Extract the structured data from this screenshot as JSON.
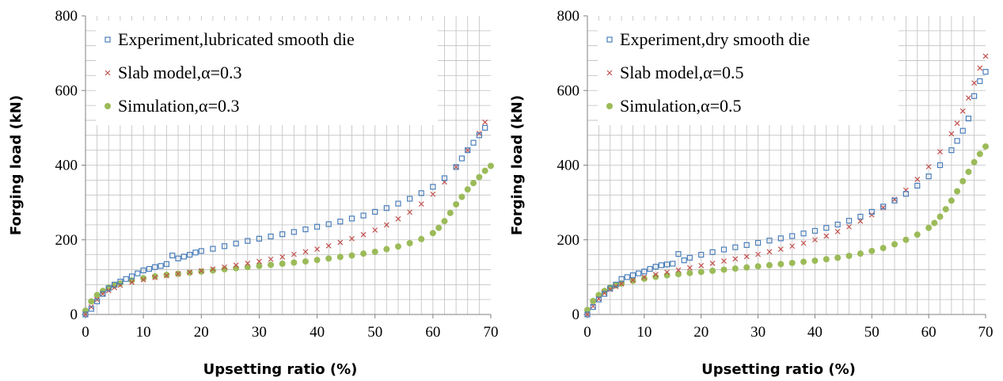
{
  "colors": {
    "experiment": "#4a7ebb",
    "slab": "#c0504d",
    "simulation": "#9bbb59",
    "grid": "#bfbfbf",
    "axis": "#808080"
  },
  "chart_data": [
    {
      "type": "scatter",
      "xlabel": "Upsetting ratio (%)",
      "ylabel": "Forging load (kN)",
      "xlim": [
        0,
        70
      ],
      "ylim": [
        0,
        800
      ],
      "xticks": [
        "0",
        "10",
        "20",
        "30",
        "40",
        "50",
        "60",
        "70"
      ],
      "yticks": [
        "0",
        "200",
        "400",
        "600",
        "800"
      ],
      "grid": true,
      "legend_position": "top-left",
      "series": [
        {
          "name": "Experiment,lubricated smooth die",
          "marker": "square",
          "points": [
            [
              0,
              0
            ],
            [
              1,
              15
            ],
            [
              2,
              35
            ],
            [
              3,
              55
            ],
            [
              4,
              70
            ],
            [
              5,
              80
            ],
            [
              6,
              88
            ],
            [
              7,
              95
            ],
            [
              8,
              102
            ],
            [
              9,
              110
            ],
            [
              10,
              118
            ],
            [
              11,
              122
            ],
            [
              12,
              127
            ],
            [
              13,
              130
            ],
            [
              14,
              135
            ],
            [
              15,
              158
            ],
            [
              16,
              150
            ],
            [
              17,
              155
            ],
            [
              18,
              160
            ],
            [
              19,
              166
            ],
            [
              20,
              170
            ],
            [
              22,
              176
            ],
            [
              24,
              183
            ],
            [
              26,
              190
            ],
            [
              28,
              197
            ],
            [
              30,
              203
            ],
            [
              32,
              209
            ],
            [
              34,
              215
            ],
            [
              36,
              221
            ],
            [
              38,
              228
            ],
            [
              40,
              235
            ],
            [
              42,
              242
            ],
            [
              44,
              249
            ],
            [
              46,
              257
            ],
            [
              48,
              265
            ],
            [
              50,
              275
            ],
            [
              52,
              285
            ],
            [
              54,
              297
            ],
            [
              56,
              310
            ],
            [
              58,
              325
            ],
            [
              60,
              342
            ],
            [
              62,
              365
            ],
            [
              64,
              395
            ],
            [
              65,
              418
            ],
            [
              66,
              440
            ],
            [
              67,
              460
            ],
            [
              68,
              480
            ],
            [
              69,
              500
            ]
          ]
        },
        {
          "name": "Slab model,α=0.3",
          "marker": "x",
          "points": [
            [
              0,
              0
            ],
            [
              1,
              20
            ],
            [
              2,
              40
            ],
            [
              3,
              55
            ],
            [
              4,
              64
            ],
            [
              5,
              72
            ],
            [
              6,
              78
            ],
            [
              8,
              86
            ],
            [
              10,
              93
            ],
            [
              12,
              99
            ],
            [
              14,
              104
            ],
            [
              16,
              109
            ],
            [
              18,
              113
            ],
            [
              20,
              117
            ],
            [
              22,
              122
            ],
            [
              24,
              127
            ],
            [
              26,
              132
            ],
            [
              28,
              137
            ],
            [
              30,
              142
            ],
            [
              32,
              148
            ],
            [
              34,
              154
            ],
            [
              36,
              161
            ],
            [
              38,
              168
            ],
            [
              40,
              175
            ],
            [
              42,
              184
            ],
            [
              44,
              193
            ],
            [
              46,
              203
            ],
            [
              48,
              214
            ],
            [
              50,
              226
            ],
            [
              52,
              240
            ],
            [
              54,
              256
            ],
            [
              56,
              274
            ],
            [
              58,
              296
            ],
            [
              60,
              322
            ],
            [
              62,
              355
            ],
            [
              64,
              395
            ],
            [
              66,
              440
            ],
            [
              68,
              485
            ],
            [
              69,
              515
            ]
          ]
        },
        {
          "name": "Simulation,α=0.3",
          "marker": "circle",
          "points": [
            [
              0,
              10
            ],
            [
              1,
              35
            ],
            [
              2,
              52
            ],
            [
              3,
              63
            ],
            [
              4,
              72
            ],
            [
              5,
              78
            ],
            [
              6,
              83
            ],
            [
              8,
              91
            ],
            [
              10,
              97
            ],
            [
              12,
              102
            ],
            [
              14,
              106
            ],
            [
              16,
              109
            ],
            [
              18,
              112
            ],
            [
              20,
              115
            ],
            [
              22,
              118
            ],
            [
              24,
              121
            ],
            [
              26,
              124
            ],
            [
              28,
              127
            ],
            [
              30,
              130
            ],
            [
              32,
              133
            ],
            [
              34,
              136
            ],
            [
              36,
              139
            ],
            [
              38,
              142
            ],
            [
              40,
              146
            ],
            [
              42,
              150
            ],
            [
              44,
              154
            ],
            [
              46,
              158
            ],
            [
              48,
              163
            ],
            [
              50,
              168
            ],
            [
              52,
              175
            ],
            [
              54,
              182
            ],
            [
              56,
              191
            ],
            [
              58,
              202
            ],
            [
              60,
              218
            ],
            [
              61,
              232
            ],
            [
              62,
              250
            ],
            [
              63,
              272
            ],
            [
              64,
              295
            ],
            [
              65,
              315
            ],
            [
              66,
              335
            ],
            [
              67,
              352
            ],
            [
              68,
              368
            ],
            [
              69,
              385
            ],
            [
              70,
              398
            ]
          ]
        }
      ]
    },
    {
      "type": "scatter",
      "xlabel": "Upsetting ratio (%)",
      "ylabel": "Forging load (kN)",
      "xlim": [
        0,
        70
      ],
      "ylim": [
        0,
        800
      ],
      "xticks": [
        "0",
        "10",
        "20",
        "30",
        "40",
        "50",
        "60",
        "70"
      ],
      "yticks": [
        "0",
        "200",
        "400",
        "600",
        "800"
      ],
      "grid": true,
      "legend_position": "top-left",
      "series": [
        {
          "name": "Experiment,dry smooth die",
          "marker": "square",
          "points": [
            [
              0,
              0
            ],
            [
              1,
              20
            ],
            [
              2,
              40
            ],
            [
              3,
              55
            ],
            [
              4,
              70
            ],
            [
              5,
              80
            ],
            [
              6,
              95
            ],
            [
              7,
              100
            ],
            [
              8,
              105
            ],
            [
              9,
              110
            ],
            [
              10,
              115
            ],
            [
              11,
              122
            ],
            [
              12,
              128
            ],
            [
              13,
              132
            ],
            [
              14,
              134
            ],
            [
              15,
              136
            ],
            [
              16,
              162
            ],
            [
              17,
              145
            ],
            [
              18,
              152
            ],
            [
              20,
              160
            ],
            [
              22,
              167
            ],
            [
              24,
              174
            ],
            [
              26,
              180
            ],
            [
              28,
              186
            ],
            [
              30,
              192
            ],
            [
              32,
              198
            ],
            [
              34,
              204
            ],
            [
              36,
              210
            ],
            [
              38,
              217
            ],
            [
              40,
              224
            ],
            [
              42,
              232
            ],
            [
              44,
              241
            ],
            [
              46,
              251
            ],
            [
              48,
              262
            ],
            [
              50,
              275
            ],
            [
              52,
              289
            ],
            [
              54,
              305
            ],
            [
              56,
              323
            ],
            [
              58,
              345
            ],
            [
              60,
              370
            ],
            [
              62,
              400
            ],
            [
              64,
              440
            ],
            [
              65,
              465
            ],
            [
              66,
              492
            ],
            [
              67,
              525
            ],
            [
              68,
              585
            ],
            [
              69,
              625
            ],
            [
              70,
              650
            ]
          ]
        },
        {
          "name": "Slab model,α=0.5",
          "marker": "x",
          "points": [
            [
              0,
              0
            ],
            [
              1,
              22
            ],
            [
              2,
              42
            ],
            [
              3,
              57
            ],
            [
              4,
              67
            ],
            [
              5,
              75
            ],
            [
              6,
              82
            ],
            [
              8,
              92
            ],
            [
              10,
              100
            ],
            [
              12,
              107
            ],
            [
              14,
              113
            ],
            [
              16,
              119
            ],
            [
              18,
              125
            ],
            [
              20,
              131
            ],
            [
              22,
              137
            ],
            [
              24,
              143
            ],
            [
              26,
              149
            ],
            [
              28,
              155
            ],
            [
              30,
              161
            ],
            [
              32,
              168
            ],
            [
              34,
              175
            ],
            [
              36,
              183
            ],
            [
              38,
              191
            ],
            [
              40,
              200
            ],
            [
              42,
              210
            ],
            [
              44,
              222
            ],
            [
              46,
              235
            ],
            [
              48,
              250
            ],
            [
              50,
              267
            ],
            [
              52,
              286
            ],
            [
              54,
              308
            ],
            [
              56,
              333
            ],
            [
              58,
              362
            ],
            [
              60,
              396
            ],
            [
              62,
              436
            ],
            [
              64,
              484
            ],
            [
              65,
              512
            ],
            [
              66,
              545
            ],
            [
              67,
              580
            ],
            [
              68,
              620
            ],
            [
              69,
              660
            ],
            [
              70,
              692
            ]
          ]
        },
        {
          "name": "Simulation,α=0.5",
          "marker": "circle",
          "points": [
            [
              0,
              12
            ],
            [
              1,
              36
            ],
            [
              2,
              52
            ],
            [
              3,
              63
            ],
            [
              4,
              72
            ],
            [
              5,
              78
            ],
            [
              6,
              83
            ],
            [
              8,
              90
            ],
            [
              10,
              96
            ],
            [
              12,
              101
            ],
            [
              14,
              105
            ],
            [
              16,
              108
            ],
            [
              18,
              111
            ],
            [
              20,
              114
            ],
            [
              22,
              117
            ],
            [
              24,
              120
            ],
            [
              26,
              123
            ],
            [
              28,
              126
            ],
            [
              30,
              129
            ],
            [
              32,
              132
            ],
            [
              34,
              135
            ],
            [
              36,
              138
            ],
            [
              38,
              141
            ],
            [
              40,
              144
            ],
            [
              42,
              148
            ],
            [
              44,
              152
            ],
            [
              46,
              157
            ],
            [
              48,
              163
            ],
            [
              50,
              170
            ],
            [
              52,
              178
            ],
            [
              54,
              188
            ],
            [
              56,
              200
            ],
            [
              58,
              214
            ],
            [
              60,
              232
            ],
            [
              61,
              245
            ],
            [
              62,
              262
            ],
            [
              63,
              282
            ],
            [
              64,
              305
            ],
            [
              65,
              330
            ],
            [
              66,
              357
            ],
            [
              67,
              382
            ],
            [
              68,
              408
            ],
            [
              69,
              430
            ],
            [
              70,
              450
            ]
          ]
        }
      ]
    }
  ]
}
